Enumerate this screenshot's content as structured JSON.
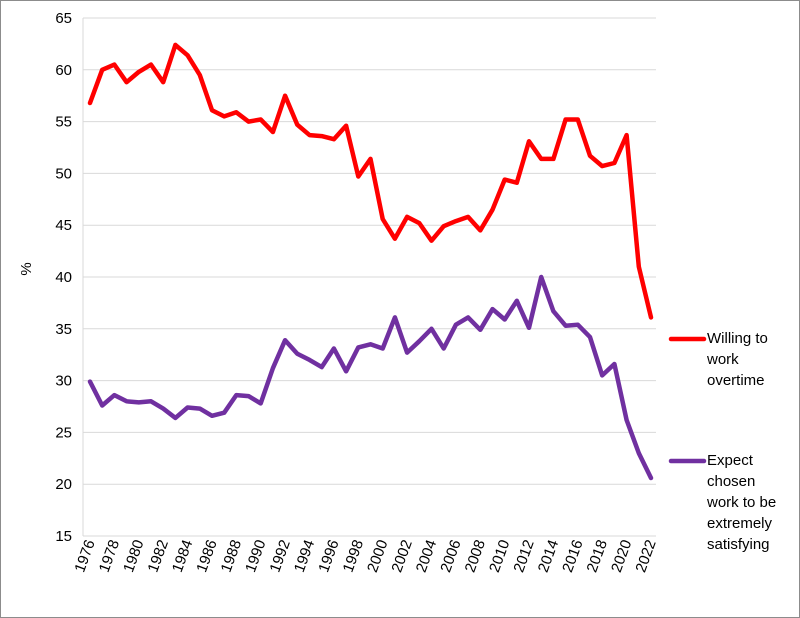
{
  "chart_data": {
    "type": "line",
    "title": "",
    "xlabel": "",
    "ylabel": "%",
    "ylim": [
      15,
      65
    ],
    "yticks": [
      15,
      20,
      25,
      30,
      35,
      40,
      45,
      50,
      55,
      60,
      65
    ],
    "xlim": [
      1976,
      2022
    ],
    "xticks": [
      1976,
      1978,
      1980,
      1982,
      1984,
      1986,
      1988,
      1990,
      1992,
      1994,
      1996,
      1998,
      2000,
      2002,
      2004,
      2006,
      2008,
      2010,
      2012,
      2014,
      2016,
      2018,
      2020,
      2022
    ],
    "grid": "horizontal",
    "legend": "right",
    "x": [
      1976,
      1977,
      1978,
      1979,
      1980,
      1981,
      1982,
      1983,
      1984,
      1985,
      1986,
      1987,
      1988,
      1989,
      1990,
      1991,
      1992,
      1993,
      1994,
      1995,
      1996,
      1997,
      1998,
      1999,
      2000,
      2001,
      2002,
      2003,
      2004,
      2005,
      2006,
      2007,
      2008,
      2009,
      2010,
      2011,
      2012,
      2013,
      2014,
      2015,
      2016,
      2017,
      2018,
      2019,
      2020,
      2021,
      2022
    ],
    "series": [
      {
        "name": "Willing to work overtime",
        "legend_lines": [
          "Willing to",
          "work",
          "overtime"
        ],
        "color": "#ff0000",
        "values": [
          56.8,
          60.0,
          60.5,
          58.8,
          59.8,
          60.5,
          58.8,
          62.4,
          61.4,
          59.5,
          56.1,
          55.5,
          55.9,
          55.0,
          55.2,
          54.0,
          57.5,
          54.7,
          53.7,
          53.6,
          53.3,
          54.6,
          49.7,
          51.4,
          45.6,
          43.7,
          45.8,
          45.2,
          43.5,
          44.9,
          45.4,
          45.8,
          44.5,
          46.5,
          49.4,
          49.1,
          53.1,
          51.4,
          51.4,
          55.2,
          55.2,
          51.7,
          50.7,
          51.0,
          53.7,
          41.0,
          36.1
        ]
      },
      {
        "name": "Expect chosen work to be extremely satisfying",
        "legend_lines": [
          "Expect",
          "chosen",
          "work to be",
          "extremely",
          "satisfying"
        ],
        "color": "#7030a0",
        "values": [
          29.9,
          27.6,
          28.6,
          28.0,
          27.9,
          28.0,
          27.3,
          26.4,
          27.4,
          27.3,
          26.6,
          26.9,
          28.6,
          28.5,
          27.8,
          31.2,
          33.9,
          32.6,
          32.0,
          31.3,
          33.1,
          30.9,
          33.2,
          33.5,
          33.1,
          36.1,
          32.7,
          33.8,
          35.0,
          33.1,
          35.4,
          36.1,
          34.9,
          36.9,
          35.9,
          37.7,
          35.1,
          40.0,
          36.7,
          35.3,
          35.4,
          34.2,
          30.5,
          31.6,
          26.2,
          23.0,
          20.6
        ]
      }
    ]
  }
}
